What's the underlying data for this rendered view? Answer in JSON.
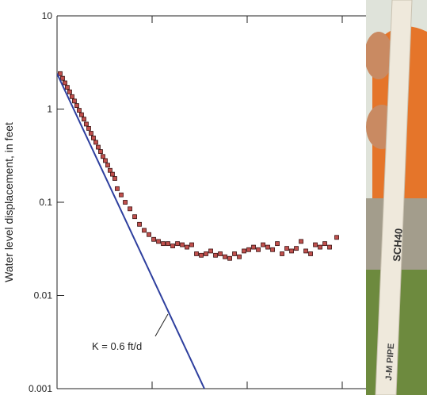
{
  "chart_data": {
    "type": "scatter",
    "y_label": "Water level displacement, in feet",
    "y_scale": "log",
    "ylim": [
      0.001,
      10
    ],
    "yticks": [
      0.001,
      0.01,
      0.1,
      1,
      10
    ],
    "xlim": [
      0,
      3.892
    ],
    "xticks": [
      1,
      2,
      3
    ],
    "annotation": "K = 0.6 ft/d",
    "photo_labels": [
      "J-M PIPE",
      "SCH40"
    ],
    "series": [
      {
        "type": "scatter",
        "color": "#c0504d",
        "x": [
          0.033,
          0.058,
          0.083,
          0.108,
          0.133,
          0.158,
          0.183,
          0.208,
          0.233,
          0.258,
          0.283,
          0.308,
          0.333,
          0.358,
          0.383,
          0.408,
          0.433,
          0.458,
          0.483,
          0.508,
          0.533,
          0.558,
          0.583,
          0.608,
          0.633,
          0.675,
          0.717,
          0.767,
          0.817,
          0.867,
          0.917,
          0.967,
          1.017,
          1.067,
          1.117,
          1.167,
          1.217,
          1.267,
          1.317,
          1.367,
          1.417,
          1.467,
          1.517,
          1.567,
          1.617,
          1.667,
          1.717,
          1.767,
          1.817,
          1.867,
          1.917,
          1.967,
          2.017,
          2.067,
          2.117,
          2.167,
          2.217,
          2.267,
          2.317,
          2.367,
          2.417,
          2.467,
          2.517,
          2.567,
          2.617,
          2.667,
          2.717,
          2.767,
          2.817,
          2.867,
          2.942
        ],
        "values": [
          2.4,
          2.14,
          1.91,
          1.71,
          1.53,
          1.36,
          1.22,
          1.09,
          0.97,
          0.87,
          0.78,
          0.69,
          0.62,
          0.55,
          0.49,
          0.44,
          0.39,
          0.35,
          0.31,
          0.28,
          0.25,
          0.22,
          0.2,
          0.18,
          0.14,
          0.12,
          0.1,
          0.085,
          0.07,
          0.058,
          0.05,
          0.045,
          0.04,
          0.038,
          0.036,
          0.036,
          0.034,
          0.036,
          0.035,
          0.033,
          0.035,
          0.028,
          0.027,
          0.028,
          0.03,
          0.027,
          0.028,
          0.026,
          0.025,
          0.028,
          0.026,
          0.03,
          0.031,
          0.033,
          0.031,
          0.035,
          0.033,
          0.031,
          0.036,
          0.028,
          0.032,
          0.03,
          0.032,
          0.038,
          0.03,
          0.028,
          0.035,
          0.033,
          0.036,
          0.033,
          0.042
        ]
      },
      {
        "type": "line",
        "color": "#2e3f9e",
        "x": [
          0,
          1.55
        ],
        "values": [
          2.4,
          0.001
        ]
      }
    ]
  }
}
